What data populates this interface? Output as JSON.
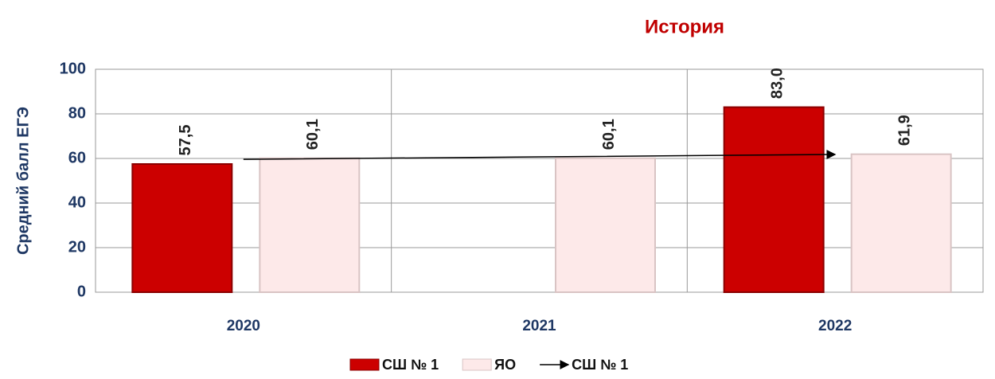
{
  "chart_data": {
    "type": "bar",
    "title": "История",
    "y_label": "Средний балл ЕГЭ",
    "categories": [
      "2020",
      "2021",
      "2022"
    ],
    "series": [
      {
        "name": "СШ № 1",
        "color": "#cc0000",
        "values": [
          57.5,
          null,
          83.0
        ],
        "value_labels": [
          "57,5",
          null,
          "83,0"
        ]
      },
      {
        "name": "ЯО",
        "color": "#fde9e9",
        "values": [
          60.1,
          60.1,
          61.9
        ],
        "value_labels": [
          "60,1",
          "60,1",
          "61,9"
        ]
      },
      {
        "name": "СШ № 1",
        "type": "line",
        "color": "#000000",
        "values": [
          59.6,
          60.7,
          61.8
        ]
      }
    ],
    "ylim": [
      0,
      100
    ],
    "yticks": [
      0,
      20,
      40,
      60,
      80,
      100
    ],
    "grid": true
  }
}
